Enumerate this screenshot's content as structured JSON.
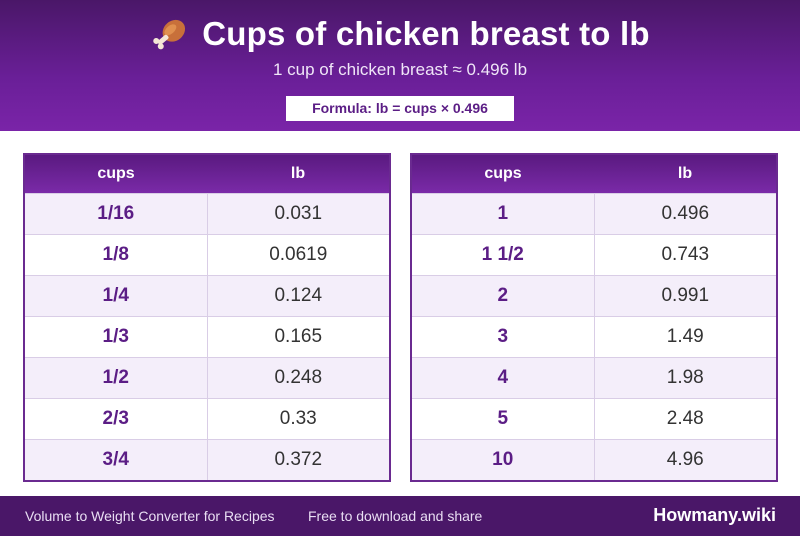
{
  "header": {
    "icon": "drumstick-icon",
    "title": "Cups of chicken breast to lb",
    "subtitle": "1 cup of chicken breast ≈ 0.496 lb",
    "formula": "Formula: lb = cups × 0.496"
  },
  "tables": {
    "left": {
      "headers": {
        "cups": "cups",
        "lb": "lb"
      },
      "rows": [
        {
          "cups": "1/16",
          "lb": "0.031"
        },
        {
          "cups": "1/8",
          "lb": "0.0619"
        },
        {
          "cups": "1/4",
          "lb": "0.124"
        },
        {
          "cups": "1/3",
          "lb": "0.165"
        },
        {
          "cups": "1/2",
          "lb": "0.248"
        },
        {
          "cups": "2/3",
          "lb": "0.33"
        },
        {
          "cups": "3/4",
          "lb": "0.372"
        }
      ]
    },
    "right": {
      "headers": {
        "cups": "cups",
        "lb": "lb"
      },
      "rows": [
        {
          "cups": "1",
          "lb": "0.496"
        },
        {
          "cups": "1 1/2",
          "lb": "0.743"
        },
        {
          "cups": "2",
          "lb": "0.991"
        },
        {
          "cups": "3",
          "lb": "1.49"
        },
        {
          "cups": "4",
          "lb": "1.98"
        },
        {
          "cups": "5",
          "lb": "2.48"
        },
        {
          "cups": "10",
          "lb": "4.96"
        }
      ]
    }
  },
  "footer": {
    "left": "Volume to Weight Converter for Recipes",
    "middle": "Free to download and share",
    "brand": "Howmany.wiki"
  },
  "colors": {
    "header_bg": "#6a1f98",
    "accent": "#5b1d85",
    "footer_bg": "#4a1768",
    "row_alt": "#f4eefa"
  }
}
